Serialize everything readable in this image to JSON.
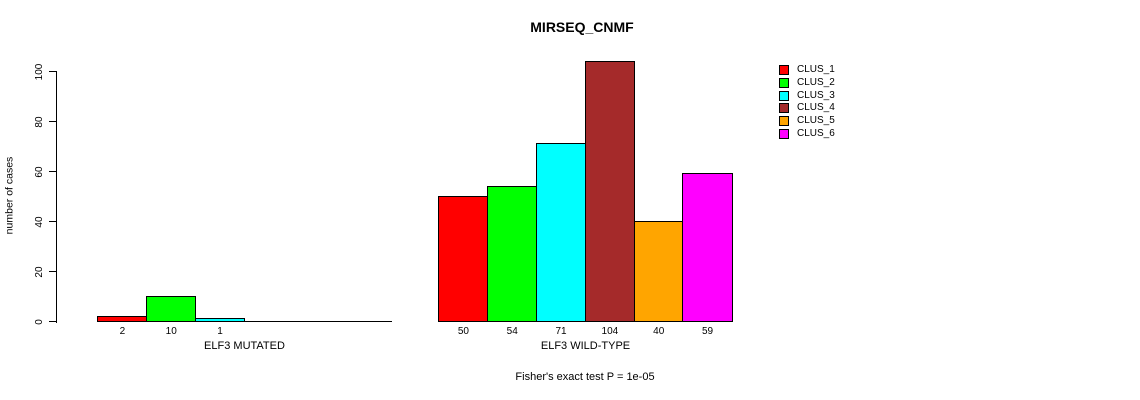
{
  "chart_data": {
    "type": "bar",
    "title": "MIRSEQ_CNMF",
    "ylabel": "number of cases",
    "xlabel": "",
    "ylim": [
      0,
      100
    ],
    "yticks": [
      0,
      20,
      40,
      60,
      80,
      100
    ],
    "grid": false,
    "legend_position": "right",
    "bar_outline_color": "#000000",
    "series_colors": [
      "#FF0000",
      "#00FF00",
      "#00FFFF",
      "#A52A2A",
      "#FFA500",
      "#FF00FF"
    ],
    "legend": [
      "CLUS_1",
      "CLUS_2",
      "CLUS_3",
      "CLUS_4",
      "CLUS_5",
      "CLUS_6"
    ],
    "groups": [
      {
        "label": "ELF3 MUTATED",
        "values": [
          2,
          10,
          1,
          0,
          0,
          0
        ]
      },
      {
        "label": "ELF3 WILD-TYPE",
        "values": [
          50,
          54,
          71,
          104,
          40,
          59
        ]
      }
    ],
    "note": "Fisher's exact test P = 1e-05"
  }
}
